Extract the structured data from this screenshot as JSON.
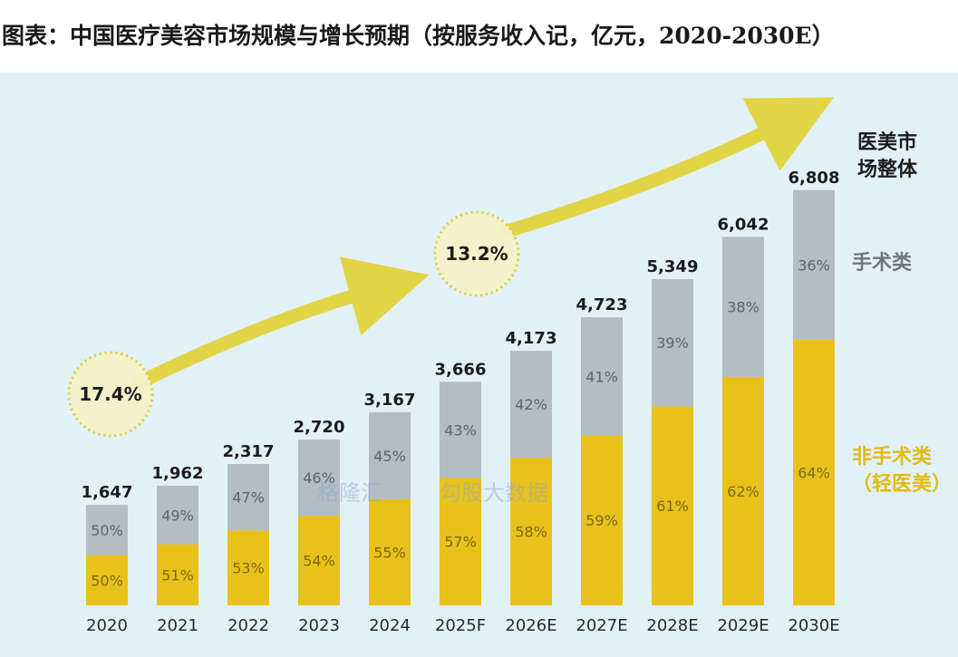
{
  "title": "图表：中国医疗美容市场规模与增长预期（按服务收入记，亿元，2020-2030E）",
  "colors": {
    "background": "#e2f1f8",
    "non_surgical": "#e8c21a",
    "surgical": "#b3bdc6",
    "arrow": "#e3d232",
    "text_dark": "#1c1c1c",
    "text_surgical": "#6f7680",
    "text_non_surgical": "#e0bc10"
  },
  "chart_data": {
    "type": "bar",
    "stacked": true,
    "title": "图表：中国医疗美容市场规模与增长预期（按服务收入记，亿元，2020-2030E）",
    "xlabel": "",
    "ylabel": "",
    "ylim": [
      0,
      7000
    ],
    "grid": false,
    "categories": [
      "2020",
      "2021",
      "2022",
      "2023",
      "2024",
      "2025F",
      "2026E",
      "2027E",
      "2028E",
      "2029E",
      "2030E"
    ],
    "totals": [
      1647,
      1962,
      2317,
      2720,
      3167,
      3666,
      4173,
      4723,
      5349,
      6042,
      6808
    ],
    "total_labels": [
      "1,647",
      "1,962",
      "2,317",
      "2,720",
      "3,167",
      "3,666",
      "4,173",
      "4,723",
      "5,349",
      "6,042",
      "6,808"
    ],
    "series": [
      {
        "name": "非手术类（轻医美）",
        "percent_values": [
          50,
          51,
          53,
          54,
          55,
          57,
          58,
          59,
          61,
          62,
          64
        ],
        "labels": [
          "50%",
          "51%",
          "53%",
          "54%",
          "55%",
          "57%",
          "58%",
          "59%",
          "61%",
          "62%",
          "64%"
        ]
      },
      {
        "name": "手术类",
        "percent_values": [
          50,
          49,
          47,
          46,
          45,
          43,
          42,
          41,
          39,
          38,
          36
        ],
        "labels": [
          "50%",
          "49%",
          "47%",
          "46%",
          "45%",
          "43%",
          "42%",
          "41%",
          "39%",
          "38%",
          "36%"
        ]
      }
    ],
    "growth_annotations": [
      {
        "label": "17.4%"
      },
      {
        "label": "13.2%"
      }
    ],
    "legend": {
      "total": "医美市\n场整体",
      "surgical": "手术类",
      "non_surgical": "非手术类\n（轻医美）"
    }
  },
  "watermark": {
    "left": "格隆汇",
    "right": "勾股大数据"
  }
}
